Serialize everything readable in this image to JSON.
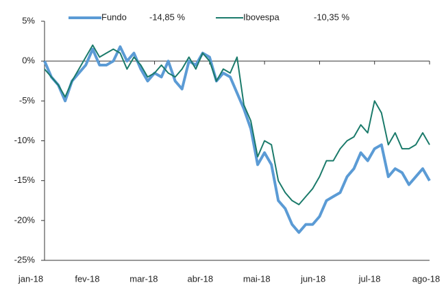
{
  "chart_data": {
    "type": "line",
    "categories": [
      "jan-18",
      null,
      null,
      null,
      null,
      null,
      null,
      null,
      "fev-18",
      null,
      null,
      null,
      null,
      null,
      null,
      null,
      "mar-18",
      null,
      null,
      null,
      null,
      null,
      null,
      null,
      "abr-18",
      null,
      null,
      null,
      null,
      null,
      null,
      null,
      "mai-18",
      null,
      null,
      null,
      null,
      null,
      null,
      null,
      "jun-18",
      null,
      null,
      null,
      null,
      null,
      null,
      null,
      "jul-18",
      null,
      null,
      null,
      null,
      null,
      null,
      null,
      "ago-18"
    ],
    "series": [
      {
        "name": "Fundo",
        "legend_value": "-14,85 %",
        "color": "#5b9bd5",
        "values": [
          0,
          -2,
          -3,
          -5,
          -2.5,
          -1.5,
          -0.5,
          1.5,
          -0.5,
          -0.5,
          0,
          1.8,
          0,
          1,
          -1,
          -2.5,
          -1.5,
          -2,
          0,
          -2.5,
          -3.5,
          0,
          -0.5,
          1,
          0.5,
          -2.5,
          -1.5,
          -2,
          -4,
          -6,
          -8.5,
          -13,
          -11.5,
          -13,
          -17.5,
          -18.5,
          -20.5,
          -21.5,
          -20.5,
          -20.5,
          -19.5,
          -17.5,
          -17,
          -16.5,
          -14.5,
          -13.5,
          -11.5,
          -12.5,
          -11,
          -10.5,
          -14.5,
          -13.5,
          -14,
          -15.5,
          -14.5,
          -13.5,
          -15
        ]
      },
      {
        "name": "Ibovespa",
        "legend_value": "-10,35 %",
        "color": "#1a7a6a",
        "values": [
          -1,
          -2,
          -3,
          -4.5,
          -2.5,
          -1,
          0.5,
          2,
          0.5,
          1,
          1.5,
          1,
          -1,
          0.5,
          -0.5,
          -2,
          -1.5,
          -0.5,
          -1.5,
          -2,
          -1,
          0.5,
          -1,
          1,
          0,
          -2.5,
          -1,
          -1.5,
          0.5,
          -5.5,
          -7.5,
          -12,
          -10,
          -10.5,
          -15,
          -16.5,
          -17.5,
          -18,
          -17,
          -16,
          -14.5,
          -12.5,
          -12.5,
          -11,
          -10,
          -9.5,
          -8,
          -9,
          -5,
          -6.5,
          -10.5,
          -9,
          -11,
          -11,
          -10.5,
          -9,
          -10.5
        ]
      }
    ],
    "ylim": [
      -25,
      5
    ],
    "yticks": [
      {
        "value": -25,
        "label": "-25%"
      },
      {
        "value": -20,
        "label": "-20%"
      },
      {
        "value": -15,
        "label": "-15%"
      },
      {
        "value": -10,
        "label": "-10%"
      },
      {
        "value": -5,
        "label": "-5%"
      },
      {
        "value": 0,
        "label": "0%"
      },
      {
        "value": 5,
        "label": "5%"
      }
    ],
    "legend": "top"
  }
}
